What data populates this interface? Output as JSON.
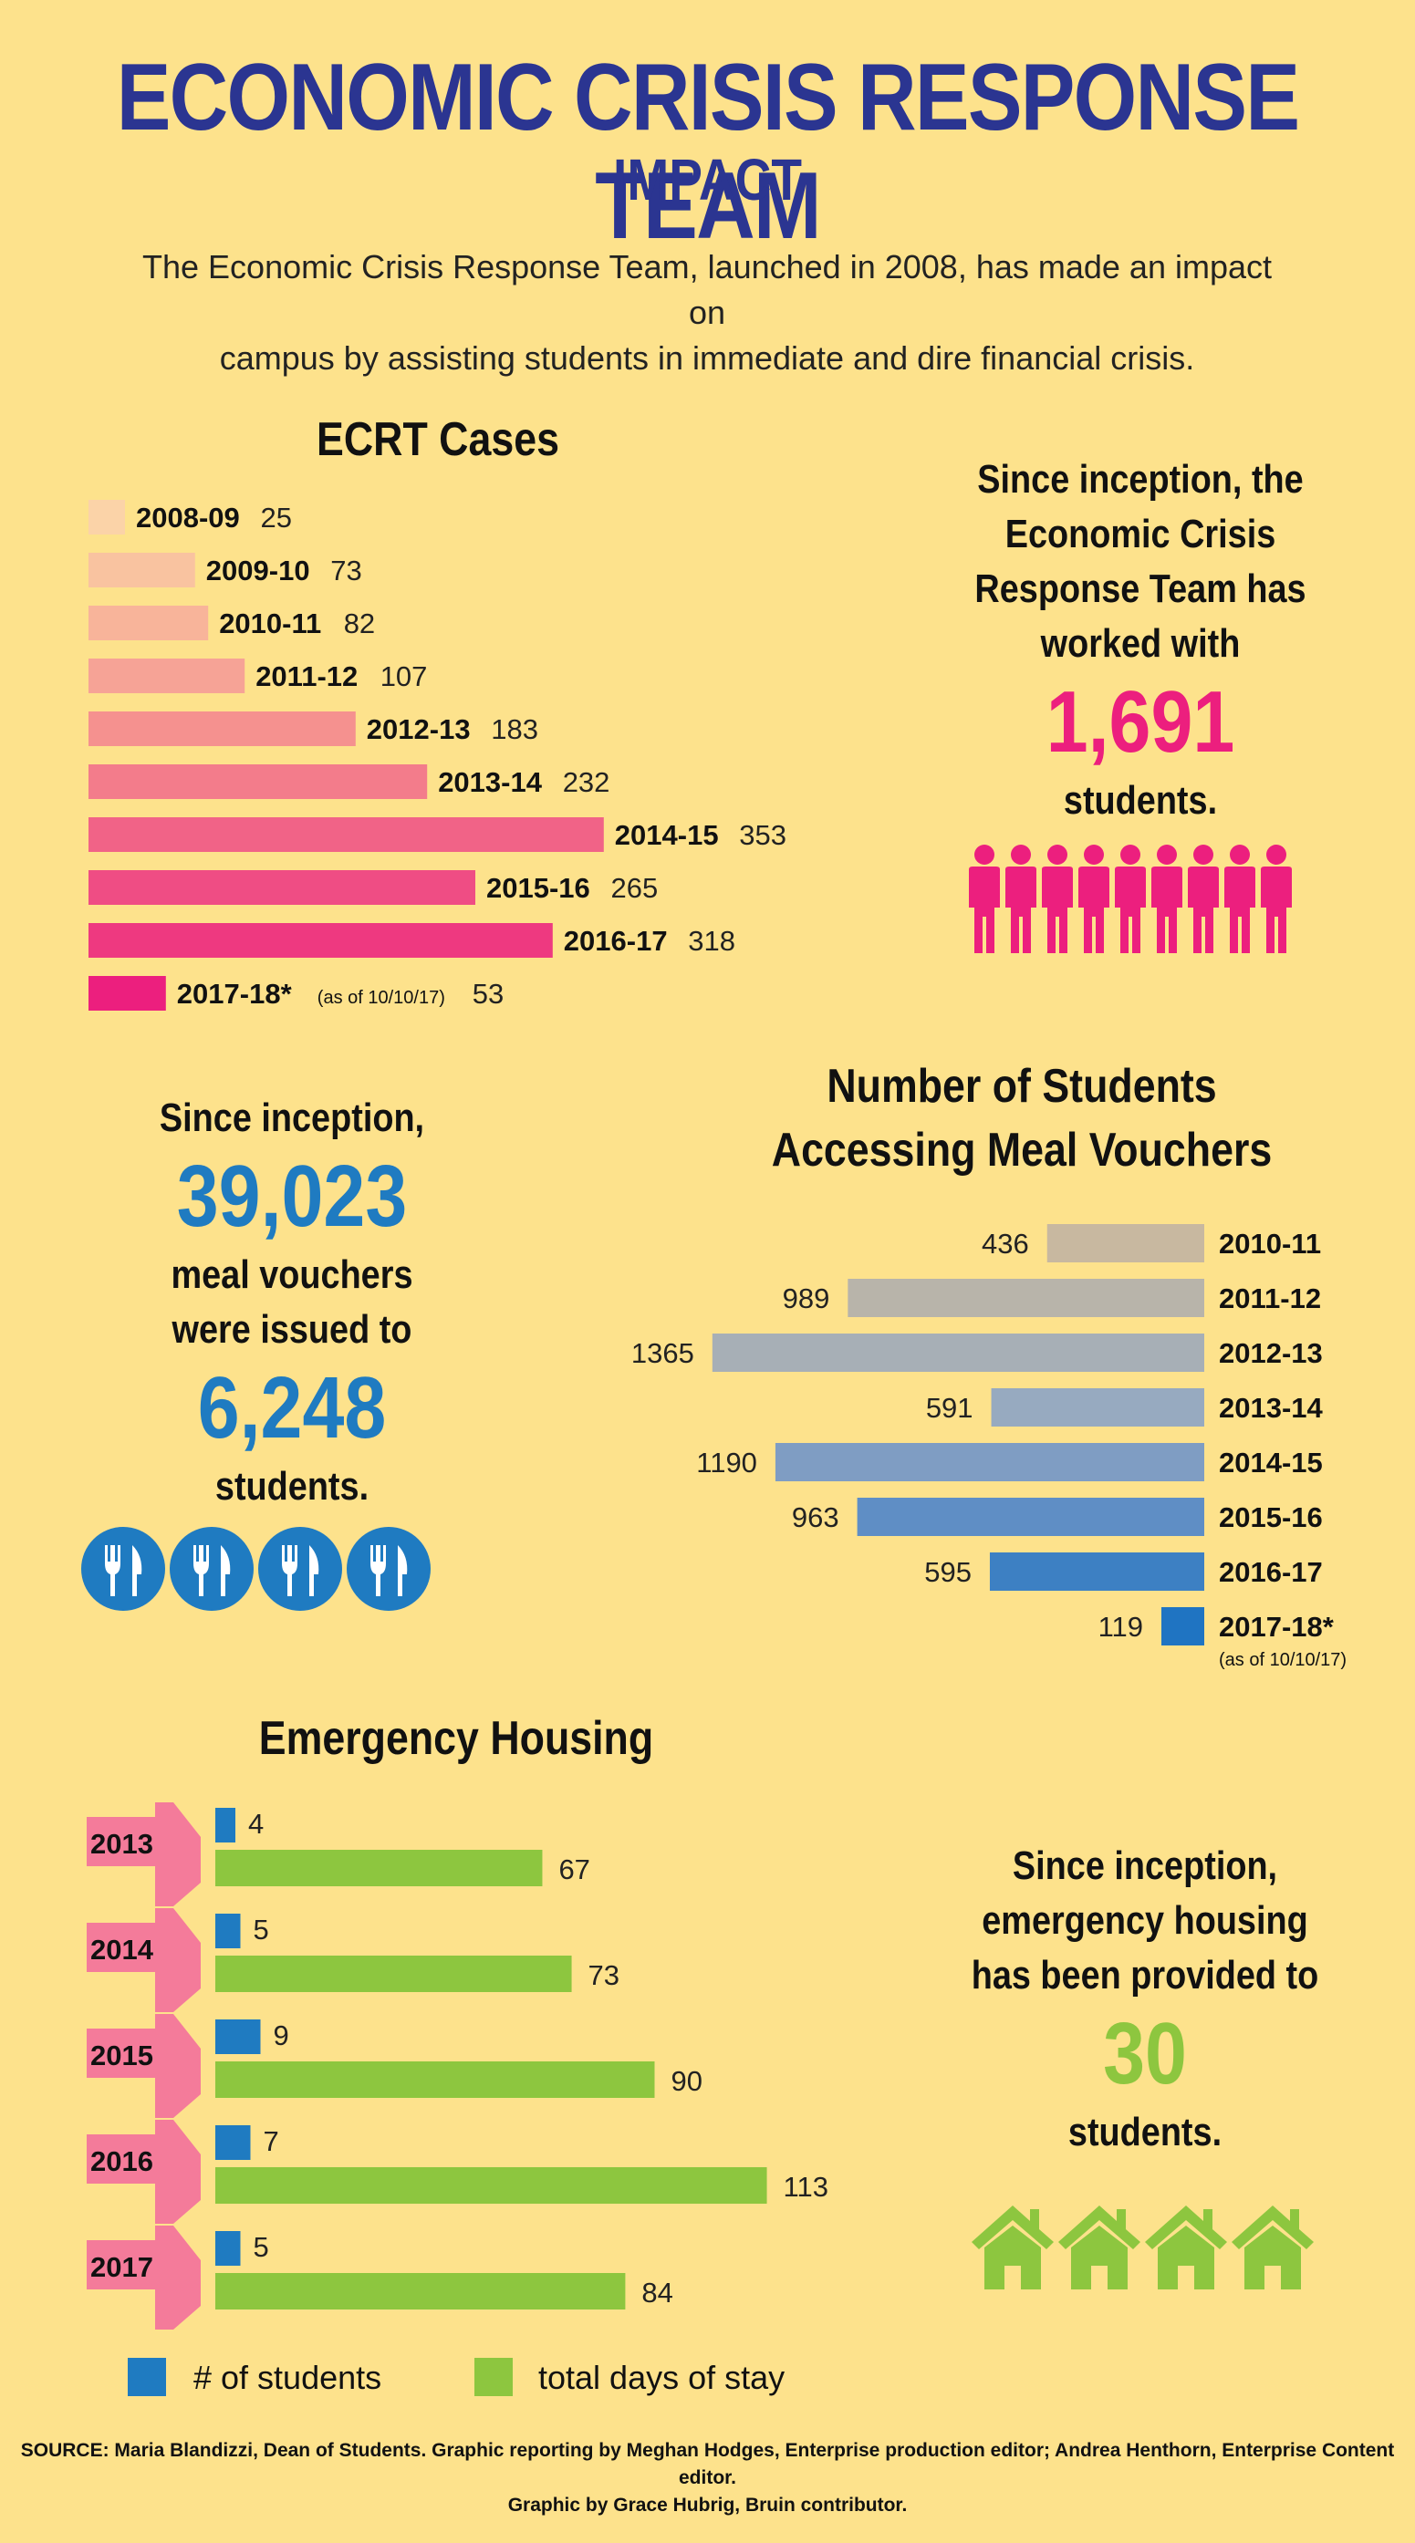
{
  "header": {
    "title": "ECONOMIC CRISIS RESPONSE TEAM",
    "subtitle": "IMPACT",
    "intro_line1": "The Economic Crisis Response Team, launched in 2008, has made an impact on",
    "intro_line2": "campus by assisting students in immediate and dire financial crisis."
  },
  "cases_callout": {
    "line1": "Since inception, the",
    "line2": "Economic Crisis",
    "line3": "Response Team has",
    "line4": "worked with",
    "number": "1,691",
    "line5": "students.",
    "icon": "person-icon",
    "icon_count": 9
  },
  "vouchers_callout": {
    "line1": "Since inception,",
    "number1": "39,023",
    "line2": "meal vouchers",
    "line3": "were issued to",
    "number2": "6,248",
    "line4": "students.",
    "icon": "fork-knife-icon",
    "icon_count": 4
  },
  "housing_callout": {
    "line1": "Since inception,",
    "line2": "emergency housing",
    "line3": "has been provided to",
    "number": "30",
    "line4": "students.",
    "icon": "house-icon",
    "icon_count": 4
  },
  "legend": {
    "students": "# of students",
    "days": "total days of stay"
  },
  "source": {
    "line1": "SOURCE: Maria Blandizzi, Dean of Students. Graphic reporting by Meghan Hodges, Enterprise production editor; Andrea Henthorn, Enterprise Content editor.",
    "line2": "Graphic by Grace Hubrig, Bruin contributor."
  },
  "colors": {
    "background": "#fde28c",
    "title_blue": "#2b3591",
    "pink": "#ec1f7e",
    "blue": "#1f7bc1",
    "green": "#8dc63f",
    "house_green": "#8dc63f"
  },
  "chart_data": [
    {
      "type": "bar",
      "orientation": "horizontal",
      "title": "ECRT Cases",
      "categories": [
        "2008-09",
        "2009-10",
        "2010-11",
        "2011-12",
        "2012-13",
        "2013-14",
        "2014-15",
        "2015-16",
        "2016-17",
        "2017-18*"
      ],
      "values": [
        25,
        73,
        82,
        107,
        183,
        232,
        353,
        265,
        318,
        53
      ],
      "annotations": {
        "2017-18*": "(as of 10/10/17)"
      },
      "colors": [
        "#fbd3a8",
        "#f9c3a0",
        "#f8b49a",
        "#f6a396",
        "#f5918f",
        "#f37c8b",
        "#f16387",
        "#ef4d84",
        "#ee3980",
        "#ec1f7e"
      ]
    },
    {
      "type": "bar",
      "orientation": "horizontal",
      "title_line1": "Number of Students",
      "title_line2": "Accessing Meal Vouchers",
      "categories": [
        "2010-11",
        "2011-12",
        "2012-13",
        "2013-14",
        "2014-15",
        "2015-16",
        "2016-17",
        "2017-18*"
      ],
      "values": [
        436,
        989,
        1365,
        591,
        1190,
        963,
        595,
        119
      ],
      "annotations": {
        "2017-18*": "(as of 10/10/17)"
      },
      "colors": [
        "#c8b8a0",
        "#b8b4aa",
        "#a7afb6",
        "#97aac0",
        "#7f9dc3",
        "#5f8ec5",
        "#3d80c3",
        "#1f74c2"
      ]
    },
    {
      "type": "bar",
      "orientation": "horizontal",
      "title": "Emergency Housing",
      "categories": [
        "2013",
        "2014",
        "2015",
        "2016",
        "2017"
      ],
      "series": [
        {
          "name": "# of students",
          "values": [
            4,
            5,
            9,
            7,
            5
          ],
          "color": "#1f7bc1"
        },
        {
          "name": "total days of stay",
          "values": [
            67,
            73,
            90,
            113,
            84
          ],
          "color": "#8dc63f"
        }
      ]
    }
  ]
}
